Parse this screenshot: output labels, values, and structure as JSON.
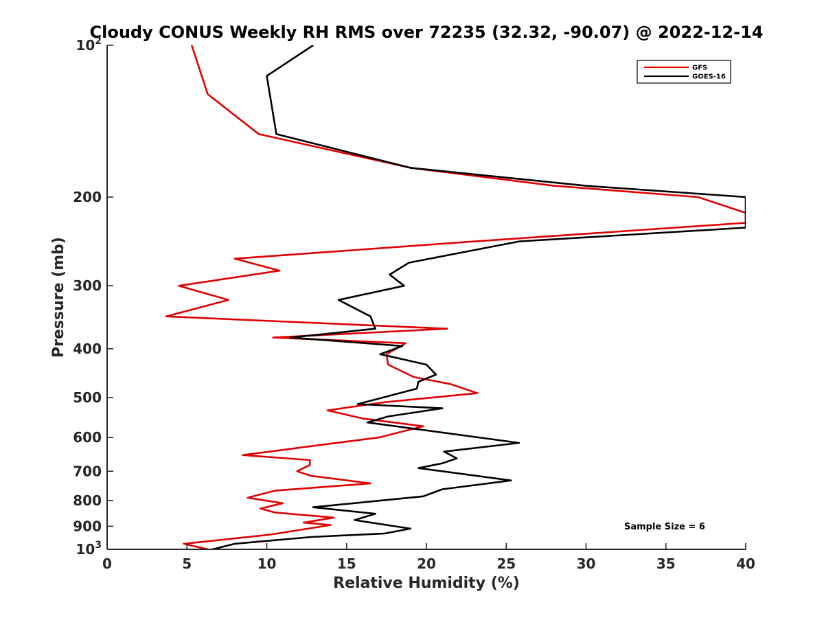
{
  "chart_data": {
    "type": "line",
    "title": "Cloudy CONUS Weekly RH RMS over 72235 (32.32, -90.07) @ 2022-12-14",
    "xlabel": "Relative Humidity (%)",
    "ylabel": "Pressure (mb)",
    "xlim": [
      0,
      40
    ],
    "ylim": [
      100,
      1000
    ],
    "yscale": "log",
    "y_reversed": true,
    "xticks": [
      0,
      5,
      10,
      15,
      20,
      25,
      30,
      35,
      40
    ],
    "xtick_labels": [
      "0",
      "5",
      "10",
      "15",
      "20",
      "25",
      "30",
      "35",
      "40"
    ],
    "yticks": [
      100,
      200,
      300,
      400,
      500,
      600,
      700,
      800,
      900,
      1000
    ],
    "ytick_labels": [
      {
        "base": "10",
        "exp": "2"
      },
      {
        "base": "200",
        "exp": ""
      },
      {
        "base": "300",
        "exp": ""
      },
      {
        "base": "400",
        "exp": ""
      },
      {
        "base": "500",
        "exp": ""
      },
      {
        "base": "600",
        "exp": ""
      },
      {
        "base": "700",
        "exp": ""
      },
      {
        "base": "800",
        "exp": ""
      },
      {
        "base": "900",
        "exp": ""
      },
      {
        "base": "10",
        "exp": "3"
      }
    ],
    "legend_position": "top-right",
    "annotation": "Sample Size = 6",
    "series": [
      {
        "name": "GFS",
        "color": "#e00000",
        "points": [
          [
            5.3,
            100
          ],
          [
            6.3,
            125
          ],
          [
            9.5,
            150
          ],
          [
            19,
            175
          ],
          [
            28,
            190
          ],
          [
            37,
            200
          ],
          [
            40,
            215
          ],
          [
            40,
            225
          ],
          [
            23,
            245
          ],
          [
            8,
            265
          ],
          [
            10.8,
            280
          ],
          [
            4.5,
            300
          ],
          [
            7.6,
            320
          ],
          [
            3.7,
            345
          ],
          [
            21.3,
            365
          ],
          [
            10.4,
            380
          ],
          [
            18.7,
            390
          ],
          [
            17.5,
            410
          ],
          [
            17.6,
            430
          ],
          [
            19.2,
            455
          ],
          [
            21.5,
            470
          ],
          [
            23.2,
            490
          ],
          [
            17.5,
            510
          ],
          [
            13.8,
            530
          ],
          [
            16,
            550
          ],
          [
            19.8,
            570
          ],
          [
            17,
            600
          ],
          [
            13.5,
            620
          ],
          [
            8.5,
            650
          ],
          [
            12.7,
            665
          ],
          [
            12.7,
            680
          ],
          [
            11.9,
            700
          ],
          [
            12.8,
            715
          ],
          [
            16.5,
            740
          ],
          [
            10.5,
            765
          ],
          [
            8.8,
            790
          ],
          [
            11,
            810
          ],
          [
            9.6,
            830
          ],
          [
            10.5,
            845
          ],
          [
            14.2,
            865
          ],
          [
            12.3,
            885
          ],
          [
            14,
            895
          ],
          [
            10.2,
            935
          ],
          [
            4.8,
            975
          ],
          [
            6.3,
            1000
          ]
        ]
      },
      {
        "name": "GOES-16",
        "color": "#000000",
        "points": [
          [
            12.9,
            100
          ],
          [
            10,
            115
          ],
          [
            10.6,
            150
          ],
          [
            19,
            175
          ],
          [
            30,
            190
          ],
          [
            40,
            200
          ],
          [
            40,
            230
          ],
          [
            25.8,
            245
          ],
          [
            18.9,
            270
          ],
          [
            17.7,
            285
          ],
          [
            18.6,
            300
          ],
          [
            14.5,
            320
          ],
          [
            16.5,
            345
          ],
          [
            16.8,
            365
          ],
          [
            11.5,
            380
          ],
          [
            18.5,
            395
          ],
          [
            17.1,
            410
          ],
          [
            20,
            430
          ],
          [
            20.6,
            450
          ],
          [
            19.5,
            465
          ],
          [
            19.4,
            480
          ],
          [
            15.7,
            515
          ],
          [
            21,
            525
          ],
          [
            17.6,
            545
          ],
          [
            16.3,
            560
          ],
          [
            25.8,
            615
          ],
          [
            21.1,
            640
          ],
          [
            21.9,
            660
          ],
          [
            21,
            675
          ],
          [
            19.5,
            690
          ],
          [
            25.3,
            730
          ],
          [
            21,
            760
          ],
          [
            19.8,
            785
          ],
          [
            12.9,
            825
          ],
          [
            16.8,
            850
          ],
          [
            15.5,
            875
          ],
          [
            19,
            910
          ],
          [
            17.4,
            930
          ],
          [
            12.8,
            945
          ],
          [
            8,
            975
          ],
          [
            6.6,
            1000
          ]
        ]
      }
    ]
  }
}
